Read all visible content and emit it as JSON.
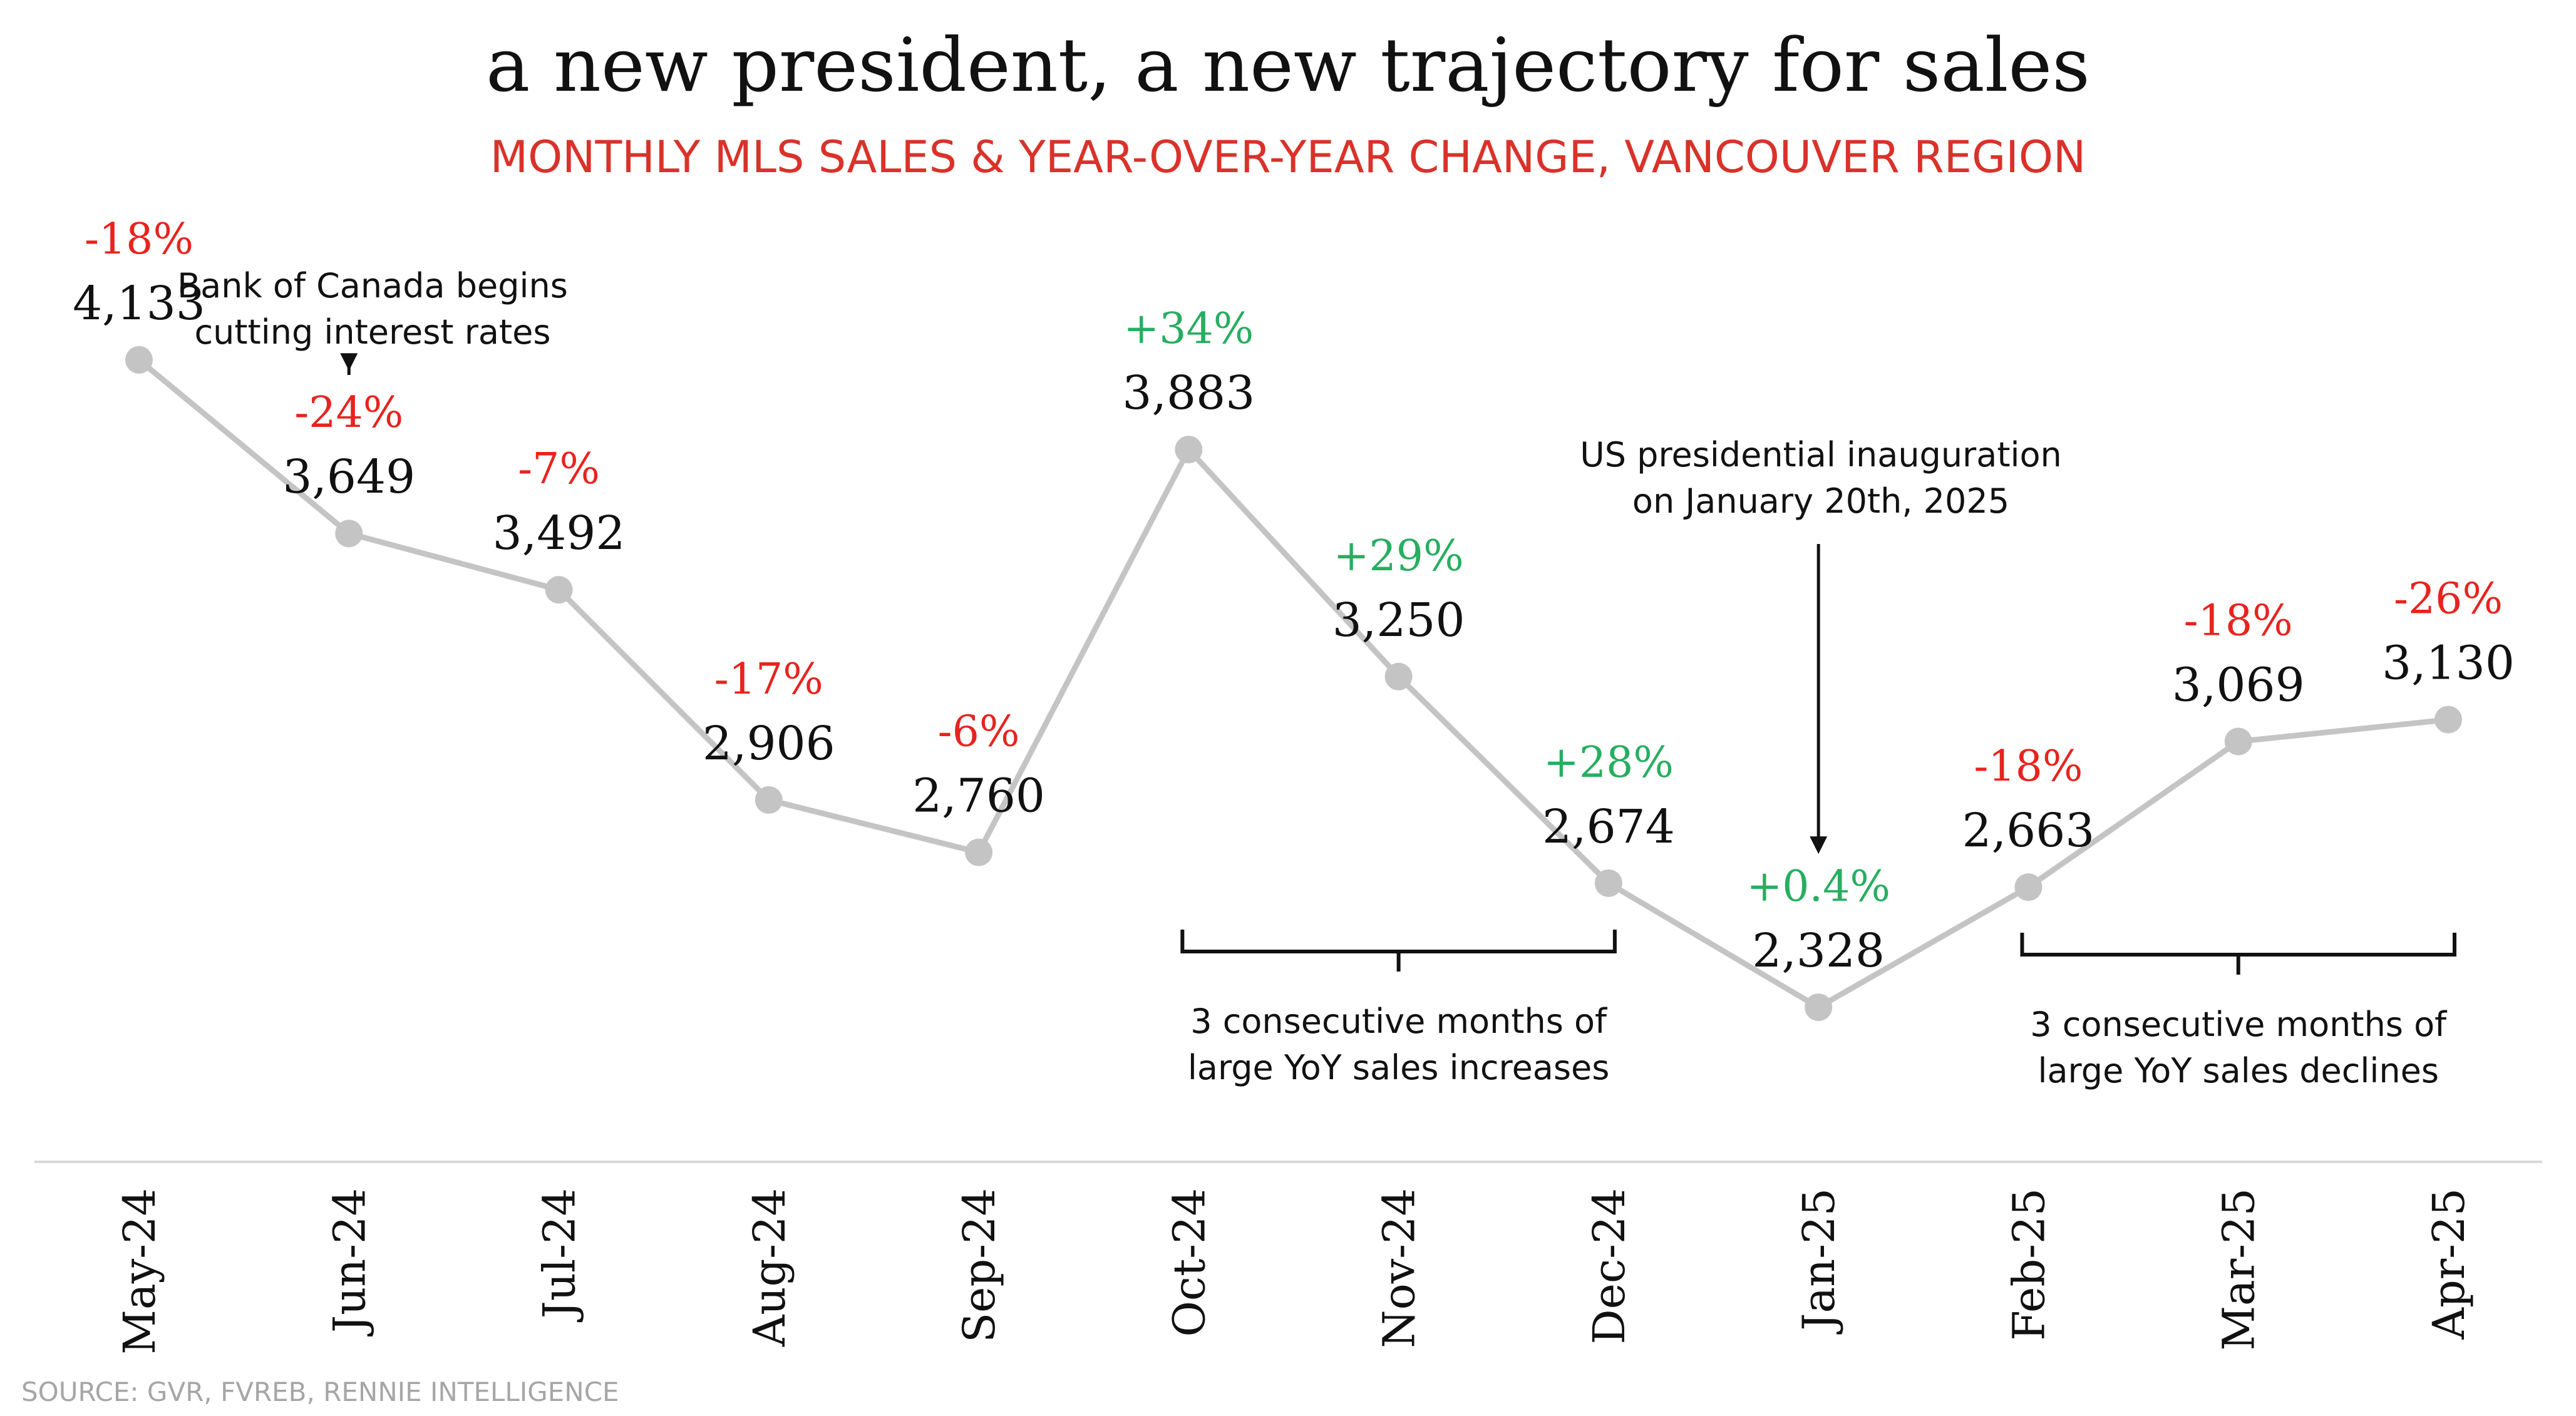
{
  "colors": {
    "line": "#c4c4c4",
    "point": "#c4c4c4",
    "positive": "#27ae60",
    "negative": "#e8231e",
    "subtitle": "#d9322a",
    "source": "#a6a6a6",
    "axis": "#d9d9d9"
  },
  "source": "SOURCE: GVR, FVREB, RENNIE INTELLIGENCE",
  "chart_data": {
    "type": "line",
    "title": "a new president, a new trajectory for sales",
    "subtitle": "MONTHLY MLS SALES & YEAR-OVER-YEAR CHANGE, VANCOUVER REGION",
    "categories": [
      "May-24",
      "Jun-24",
      "Jul-24",
      "Aug-24",
      "Sep-24",
      "Oct-24",
      "Nov-24",
      "Dec-24",
      "Jan-25",
      "Feb-25",
      "Mar-25",
      "Apr-25"
    ],
    "values": [
      4133,
      3649,
      3492,
      2906,
      2760,
      3883,
      3250,
      2674,
      2328,
      2663,
      3069,
      3130
    ],
    "value_labels": [
      "4,133",
      "3,649",
      "3,492",
      "2,906",
      "2,760",
      "3,883",
      "3,250",
      "2,674",
      "2,328",
      "2,663",
      "3,069",
      "3,130"
    ],
    "yoy_change": [
      -18,
      -24,
      -7,
      -17,
      -6,
      34,
      29,
      28,
      0.4,
      -18,
      -18,
      -26
    ],
    "yoy_labels": [
      "-18%",
      "-24%",
      "-7%",
      "-17%",
      "-6%",
      "+34%",
      "+29%",
      "+28%",
      "+0.4%",
      "-18%",
      "-18%",
      "-26%"
    ],
    "ylim": [
      1000,
      4700
    ],
    "grid": false,
    "legend": "none",
    "annotations": [
      {
        "lines": [
          "Bank of Canada begins",
          "cutting interest rates"
        ],
        "target": "Jun-24",
        "kind": "arrow"
      },
      {
        "lines": [
          "US presidential inauguration",
          "on January 20th, 2025"
        ],
        "target": "Jan-25",
        "kind": "arrow"
      },
      {
        "lines": [
          "3 consecutive months of",
          "large YoY sales increases"
        ],
        "range": [
          "Oct-24",
          "Dec-24"
        ],
        "kind": "bracket"
      },
      {
        "lines": [
          "3 consecutive months of",
          "large YoY sales declines"
        ],
        "range": [
          "Feb-25",
          "Apr-25"
        ],
        "kind": "bracket"
      }
    ]
  }
}
